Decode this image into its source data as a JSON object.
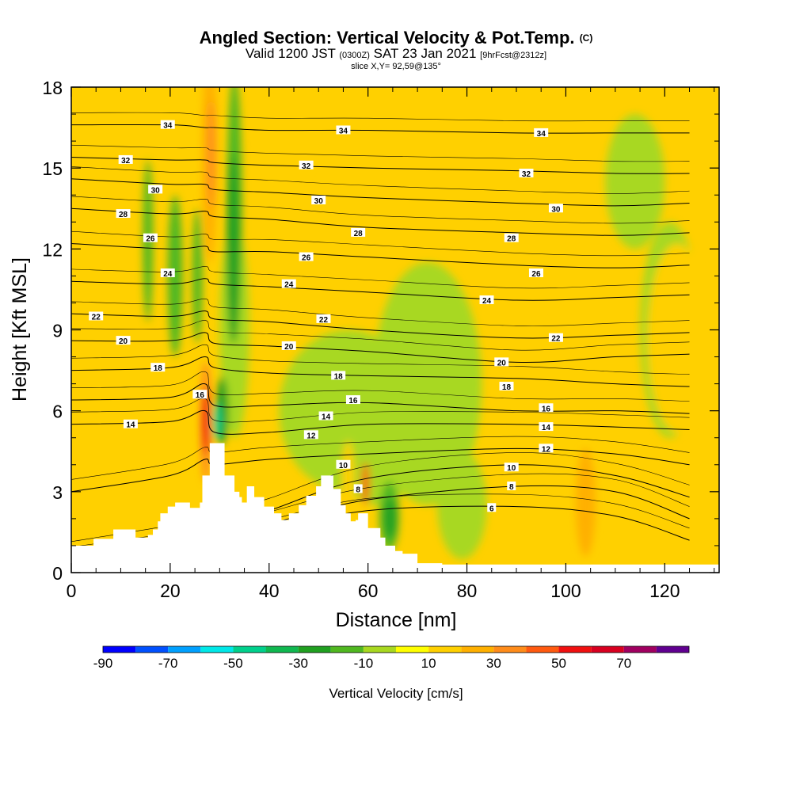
{
  "title": {
    "main": "Angled Section: Vertical Velocity & Pot.Temp.",
    "mark": "(C)",
    "valid_prefix": "Valid 1200 JST",
    "valid_utc": "(0300Z)",
    "valid_date": "SAT 23 Jan 2021",
    "forecast": "[9hrFcst@2312z]",
    "slice": "slice X,Y= 92,59@135°"
  },
  "chart_data": {
    "type": "heatmap",
    "xlabel": "Distance [nm]",
    "ylabel": "Height [Kft MSL]",
    "xlim": [
      0,
      131
    ],
    "ylim": [
      0,
      18
    ],
    "xticks": [
      0,
      20,
      40,
      60,
      80,
      100,
      120
    ],
    "yticks": [
      0,
      3,
      6,
      9,
      12,
      15,
      18
    ],
    "colorbar": {
      "label": "Vertical Velocity [cm/s]",
      "tick_labels": [
        "-90",
        "-70",
        "-50",
        "-30",
        "-10",
        "10",
        "30",
        "50",
        "70"
      ],
      "bins": [
        -90,
        -80,
        -70,
        -60,
        -50,
        -40,
        -30,
        -20,
        -10,
        0,
        10,
        20,
        30,
        40,
        50,
        60,
        70,
        80
      ],
      "colors": [
        "#0000ff",
        "#0050ff",
        "#00a0ff",
        "#00e8e8",
        "#00d08c",
        "#10b850",
        "#20a020",
        "#50b820",
        "#a8d820",
        "#ffff00",
        "#ffd000",
        "#ffb000",
        "#ff8c1a",
        "#ff5a10",
        "#f01010",
        "#d80020",
        "#a00060",
        "#600090"
      ]
    },
    "terrain": [
      [
        0,
        1.0
      ],
      [
        4.5,
        1.0
      ],
      [
        4.5,
        1.25
      ],
      [
        8.5,
        1.25
      ],
      [
        8.5,
        1.6
      ],
      [
        13,
        1.6
      ],
      [
        13,
        1.3
      ],
      [
        15.5,
        1.3
      ],
      [
        15.5,
        1.4
      ],
      [
        16.5,
        1.4
      ],
      [
        16.5,
        1.6
      ],
      [
        17.5,
        1.6
      ],
      [
        17.5,
        1.9
      ],
      [
        18,
        1.9
      ],
      [
        18,
        2.2
      ],
      [
        19.5,
        2.2
      ],
      [
        19.5,
        2.45
      ],
      [
        21,
        2.45
      ],
      [
        21,
        2.6
      ],
      [
        24,
        2.6
      ],
      [
        24,
        2.4
      ],
      [
        26,
        2.4
      ],
      [
        26,
        2.6
      ],
      [
        26.5,
        2.6
      ],
      [
        26.5,
        3.6
      ],
      [
        28,
        3.6
      ],
      [
        28,
        4.8
      ],
      [
        31,
        4.8
      ],
      [
        31,
        3.6
      ],
      [
        33,
        3.6
      ],
      [
        33,
        3.0
      ],
      [
        34,
        3.0
      ],
      [
        34,
        2.8
      ],
      [
        34.5,
        2.8
      ],
      [
        34.5,
        2.6
      ],
      [
        35.5,
        2.6
      ],
      [
        35.5,
        3.2
      ],
      [
        37,
        3.2
      ],
      [
        37,
        2.8
      ],
      [
        39,
        2.8
      ],
      [
        39,
        2.45
      ],
      [
        41,
        2.45
      ],
      [
        41,
        2.2
      ],
      [
        42.5,
        2.2
      ],
      [
        42.5,
        1.95
      ],
      [
        44,
        1.95
      ],
      [
        44,
        2.2
      ],
      [
        46,
        2.2
      ],
      [
        46,
        2.5
      ],
      [
        47.5,
        2.5
      ],
      [
        47.5,
        2.85
      ],
      [
        49.5,
        2.85
      ],
      [
        49.5,
        3.2
      ],
      [
        50.5,
        3.2
      ],
      [
        50.5,
        3.6
      ],
      [
        53,
        3.6
      ],
      [
        53,
        3.1
      ],
      [
        54.5,
        3.1
      ],
      [
        54.5,
        2.5
      ],
      [
        55.5,
        2.5
      ],
      [
        55.5,
        2.2
      ],
      [
        56.5,
        2.2
      ],
      [
        56.5,
        1.9
      ],
      [
        57.5,
        1.9
      ],
      [
        57.5,
        1.95
      ],
      [
        58,
        1.95
      ],
      [
        58,
        2.2
      ],
      [
        60,
        2.2
      ],
      [
        60,
        1.65
      ],
      [
        62.5,
        1.65
      ],
      [
        62.5,
        1.3
      ],
      [
        63.5,
        1.3
      ],
      [
        63.5,
        1.0
      ],
      [
        65.5,
        1.0
      ],
      [
        65.5,
        0.8
      ],
      [
        67,
        0.8
      ],
      [
        67,
        0.7
      ],
      [
        70,
        0.7
      ],
      [
        70,
        0.35
      ],
      [
        75,
        0.35
      ],
      [
        75,
        0.3
      ],
      [
        131,
        0.3
      ]
    ],
    "isentropes": {
      "levels": [
        6,
        8,
        10,
        12,
        14,
        16,
        18,
        20,
        22,
        24,
        26,
        28,
        30,
        32,
        34
      ],
      "series": [
        {
          "x": [
            0,
            20,
            27,
            29,
            40,
            60,
            90,
            110,
            125
          ],
          "y": [
            0.35,
            0.8,
            0.9,
            1.0,
            1.5,
            2.3,
            2.45,
            2.1,
            1.2
          ]
        },
        {
          "x": [
            0,
            20,
            27,
            29,
            40,
            60,
            90,
            110,
            125
          ],
          "y": [
            0.5,
            1.0,
            1.2,
            1.3,
            1.8,
            2.7,
            3.2,
            3.0,
            2.0
          ]
        },
        {
          "x": [
            0,
            20,
            27,
            29,
            40,
            60,
            90,
            110,
            125
          ],
          "y": [
            0.7,
            1.3,
            1.6,
            1.7,
            2.3,
            3.5,
            4.0,
            3.6,
            2.8
          ]
        },
        {
          "x": [
            0,
            20,
            27,
            29,
            40,
            60,
            90,
            110,
            125
          ],
          "y": [
            3.0,
            3.6,
            4.2,
            4.0,
            4.2,
            4.4,
            4.6,
            4.4,
            4.0
          ]
        },
        {
          "x": [
            0,
            20,
            27,
            29,
            40,
            60,
            90,
            110,
            125
          ],
          "y": [
            5.5,
            5.6,
            6.0,
            5.2,
            5.2,
            5.5,
            5.5,
            5.4,
            5.3
          ]
        },
        {
          "x": [
            0,
            20,
            27,
            29,
            40,
            60,
            90,
            110,
            125
          ],
          "y": [
            6.4,
            6.5,
            7.0,
            6.2,
            6.2,
            6.3,
            6.0,
            6.0,
            5.9
          ]
        },
        {
          "x": [
            0,
            20,
            27,
            29,
            40,
            60,
            90,
            110,
            125
          ],
          "y": [
            7.5,
            7.6,
            8.0,
            7.6,
            7.4,
            7.3,
            7.2,
            7.0,
            6.9
          ]
        },
        {
          "x": [
            0,
            20,
            27,
            29,
            40,
            60,
            90,
            110,
            125
          ],
          "y": [
            8.6,
            8.6,
            8.9,
            8.5,
            8.4,
            8.2,
            7.8,
            8.0,
            8.1
          ]
        },
        {
          "x": [
            0,
            20,
            27,
            29,
            40,
            60,
            90,
            110,
            125
          ],
          "y": [
            9.6,
            9.5,
            9.7,
            9.4,
            9.3,
            9.0,
            8.7,
            8.8,
            8.9
          ]
        },
        {
          "x": [
            0,
            20,
            27,
            29,
            40,
            60,
            90,
            110,
            125
          ],
          "y": [
            10.8,
            10.7,
            10.9,
            10.7,
            10.6,
            10.4,
            10.1,
            10.2,
            10.3
          ]
        },
        {
          "x": [
            0,
            20,
            27,
            29,
            40,
            60,
            90,
            110,
            125
          ],
          "y": [
            12.2,
            12.0,
            12.1,
            11.9,
            11.9,
            11.7,
            11.4,
            11.3,
            11.4
          ]
        },
        {
          "x": [
            0,
            20,
            27,
            29,
            40,
            60,
            90,
            110,
            125
          ],
          "y": [
            13.5,
            13.3,
            13.4,
            13.2,
            13.1,
            12.8,
            12.6,
            12.5,
            12.6
          ]
        },
        {
          "x": [
            0,
            20,
            27,
            29,
            40,
            60,
            90,
            110,
            125
          ],
          "y": [
            14.6,
            14.4,
            14.4,
            14.2,
            14.1,
            13.9,
            13.7,
            13.6,
            13.7
          ]
        },
        {
          "x": [
            0,
            20,
            27,
            29,
            40,
            60,
            90,
            110,
            125
          ],
          "y": [
            15.4,
            15.3,
            15.3,
            15.2,
            15.1,
            15.0,
            14.9,
            14.8,
            14.8
          ]
        },
        {
          "x": [
            0,
            20,
            27,
            29,
            40,
            60,
            90,
            110,
            125
          ],
          "y": [
            16.6,
            16.6,
            16.5,
            16.5,
            16.4,
            16.4,
            16.3,
            16.3,
            16.3
          ]
        }
      ]
    },
    "contour_labels": [
      {
        "x": 19.5,
        "y": 16.6,
        "text": "34"
      },
      {
        "x": 55,
        "y": 16.4,
        "text": "34"
      },
      {
        "x": 95,
        "y": 16.3,
        "text": "34"
      },
      {
        "x": 11,
        "y": 15.3,
        "text": "32"
      },
      {
        "x": 47.5,
        "y": 15.1,
        "text": "32"
      },
      {
        "x": 92,
        "y": 14.8,
        "text": "32"
      },
      {
        "x": 17,
        "y": 14.2,
        "text": "30"
      },
      {
        "x": 50,
        "y": 13.8,
        "text": "30"
      },
      {
        "x": 98,
        "y": 13.5,
        "text": "30"
      },
      {
        "x": 10.5,
        "y": 13.3,
        "text": "28"
      },
      {
        "x": 58,
        "y": 12.6,
        "text": "28"
      },
      {
        "x": 89,
        "y": 12.4,
        "text": "28"
      },
      {
        "x": 16,
        "y": 12.4,
        "text": "26"
      },
      {
        "x": 47.5,
        "y": 11.7,
        "text": "26"
      },
      {
        "x": 94,
        "y": 11.1,
        "text": "26"
      },
      {
        "x": 19.5,
        "y": 11.1,
        "text": "24"
      },
      {
        "x": 44,
        "y": 10.7,
        "text": "24"
      },
      {
        "x": 84,
        "y": 10.1,
        "text": "24"
      },
      {
        "x": 5,
        "y": 9.5,
        "text": "22"
      },
      {
        "x": 51,
        "y": 9.4,
        "text": "22"
      },
      {
        "x": 98,
        "y": 8.7,
        "text": "22"
      },
      {
        "x": 10.5,
        "y": 8.6,
        "text": "20"
      },
      {
        "x": 44,
        "y": 8.4,
        "text": "20"
      },
      {
        "x": 87,
        "y": 7.8,
        "text": "20"
      },
      {
        "x": 17.5,
        "y": 7.6,
        "text": "18"
      },
      {
        "x": 54,
        "y": 7.3,
        "text": "18"
      },
      {
        "x": 88,
        "y": 6.9,
        "text": "18"
      },
      {
        "x": 26,
        "y": 6.6,
        "text": "16"
      },
      {
        "x": 57,
        "y": 6.4,
        "text": "16"
      },
      {
        "x": 96,
        "y": 6.1,
        "text": "16"
      },
      {
        "x": 12,
        "y": 5.5,
        "text": "14"
      },
      {
        "x": 51.5,
        "y": 5.8,
        "text": "14"
      },
      {
        "x": 96,
        "y": 5.4,
        "text": "14"
      },
      {
        "x": 48.5,
        "y": 5.1,
        "text": "12"
      },
      {
        "x": 96,
        "y": 4.6,
        "text": "12"
      },
      {
        "x": 55,
        "y": 4.0,
        "text": "10"
      },
      {
        "x": 89,
        "y": 3.9,
        "text": "10"
      },
      {
        "x": 58,
        "y": 3.1,
        "text": "8"
      },
      {
        "x": 89,
        "y": 3.2,
        "text": "8"
      },
      {
        "x": 85,
        "y": 2.4,
        "text": "6"
      }
    ],
    "velocity_features": [
      {
        "x": 0,
        "y": 7.5,
        "w": 131,
        "h": 21,
        "value": 10
      },
      {
        "x": 56,
        "y": 6,
        "w": 28,
        "h": 6,
        "value": -5
      },
      {
        "x": 62,
        "y": 3.5,
        "w": 12,
        "h": 2,
        "value": -5
      },
      {
        "x": 72,
        "y": 7,
        "w": 22,
        "h": 9,
        "value": -5
      },
      {
        "x": 33,
        "y": 9,
        "w": 6,
        "h": 8,
        "value": -5
      },
      {
        "x": 121,
        "y": 9,
        "w": 12,
        "h": 8,
        "value": -5
      },
      {
        "x": 79,
        "y": 2.5,
        "w": 10,
        "h": 4,
        "value": -5
      },
      {
        "x": 114,
        "y": 14.5,
        "w": 12,
        "h": 5,
        "value": -5
      },
      {
        "x": 0,
        "y": 2.4,
        "w": 14,
        "h": 2.2,
        "value": 15
      },
      {
        "x": 44,
        "y": 16.5,
        "w": 12,
        "h": 4,
        "value": 15
      },
      {
        "x": 84.5,
        "y": 13.3,
        "w": 3,
        "h": 5,
        "value": 15
      },
      {
        "x": 100.5,
        "y": 13.2,
        "w": 5,
        "h": 6,
        "value": 15
      },
      {
        "x": 122.5,
        "y": 8.7,
        "w": 12,
        "h": 7,
        "value": 15
      },
      {
        "x": 104,
        "y": 2.6,
        "w": 4,
        "h": 4,
        "value": 25
      },
      {
        "x": 95,
        "y": 7.3,
        "w": 3,
        "h": 4,
        "value": 15
      },
      {
        "x": 56,
        "y": 3.5,
        "w": 2.5,
        "h": 2.8,
        "value": 15
      },
      {
        "x": 59.5,
        "y": 3.3,
        "w": 1.5,
        "h": 1.6,
        "value": 40
      },
      {
        "x": 28,
        "y": 15.5,
        "w": 3,
        "h": 8,
        "value": 25
      },
      {
        "x": 28.3,
        "y": 15.5,
        "w": 1.5,
        "h": 4,
        "value": 35
      },
      {
        "x": 27.2,
        "y": 5.6,
        "w": 2.2,
        "h": 4.5,
        "value": 35
      },
      {
        "x": 27.2,
        "y": 5.6,
        "w": 1.5,
        "h": 2.5,
        "value": 50
      },
      {
        "x": 15.5,
        "y": 12.3,
        "w": 2,
        "h": 6,
        "value": -15
      },
      {
        "x": 21,
        "y": 11.0,
        "w": 3,
        "h": 6,
        "value": -15
      },
      {
        "x": 25.5,
        "y": 11.0,
        "w": 2,
        "h": 5,
        "value": -15
      },
      {
        "x": 33,
        "y": 13.5,
        "w": 3,
        "h": 10,
        "value": -20
      },
      {
        "x": 32.7,
        "y": 12.0,
        "w": 2.6,
        "h": 7,
        "value": -30
      },
      {
        "x": 30.5,
        "y": 6.0,
        "w": 2.5,
        "h": 2.5,
        "value": -25
      },
      {
        "x": 29.5,
        "y": 5.6,
        "w": 1.5,
        "h": 1.4,
        "value": -50
      },
      {
        "x": 64.3,
        "y": 2.1,
        "w": 4,
        "h": 2.6,
        "value": -20
      },
      {
        "x": 64.5,
        "y": 2.0,
        "w": 2.5,
        "h": 1.5,
        "value": -30
      }
    ]
  }
}
